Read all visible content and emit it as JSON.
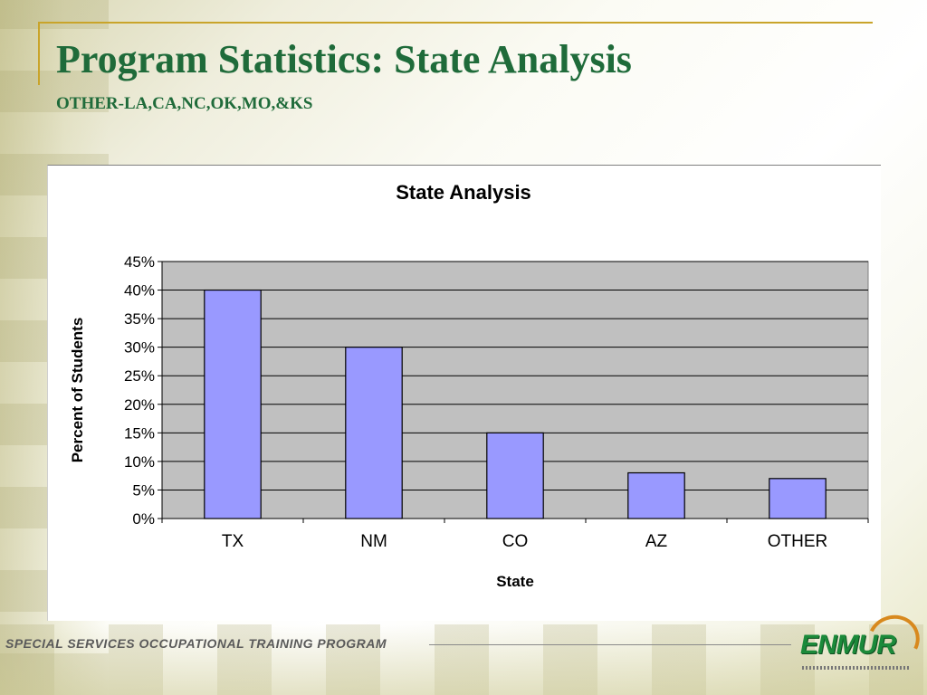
{
  "slide": {
    "title": "Program Statistics: State Analysis",
    "subtitle": "OTHER-LA,CA,NC,OK,MO,&KS",
    "footer": "SPECIAL SERVICES OCCUPATIONAL TRAINING PROGRAM",
    "logo_text": "ENMUR"
  },
  "colors": {
    "title": "#1f6b3a",
    "bar_fill": "#9999ff",
    "plot_bg": "#c0c0c0",
    "accent_rule": "#c9a42a"
  },
  "chart_data": {
    "type": "bar",
    "title": "State Analysis",
    "xlabel": "State",
    "ylabel": "Percent of Students",
    "categories": [
      "TX",
      "NM",
      "CO",
      "AZ",
      "OTHER"
    ],
    "values": [
      40,
      30,
      15,
      8,
      7
    ],
    "ylim": [
      0,
      45
    ],
    "yticks": [
      0,
      5,
      10,
      15,
      20,
      25,
      30,
      35,
      40,
      45
    ],
    "ytick_suffix": "%",
    "grid": true,
    "legend": "none"
  }
}
